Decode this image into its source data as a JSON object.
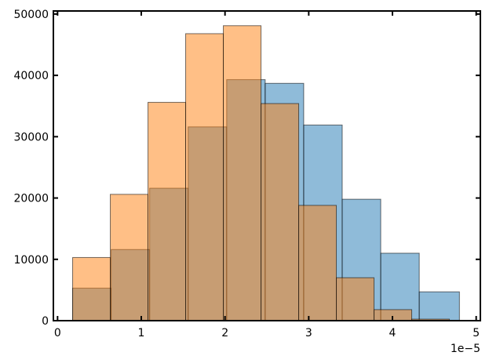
{
  "chart_data": {
    "type": "bar",
    "title": "",
    "xlabel": "",
    "ylabel": "",
    "x_offset_label": "1e−5",
    "xlim": [
      -0.05,
      5.05
    ],
    "ylim": [
      0,
      50500
    ],
    "x_ticks": [
      0,
      1,
      2,
      3,
      4,
      5
    ],
    "x_tick_labels": [
      "0",
      "1",
      "2",
      "3",
      "4",
      "5"
    ],
    "y_ticks": [
      0,
      10000,
      20000,
      30000,
      40000,
      50000
    ],
    "y_tick_labels": [
      "0",
      "10000",
      "20000",
      "30000",
      "40000",
      "50000"
    ],
    "grid": false,
    "legend": "none",
    "series": [
      {
        "color": "#1f77b4",
        "opacity": 0.5,
        "bins": [
          {
            "x0": 0.18,
            "x1": 0.64,
            "count": 5300
          },
          {
            "x0": 0.64,
            "x1": 1.1,
            "count": 11600
          },
          {
            "x0": 1.1,
            "x1": 1.56,
            "count": 21600
          },
          {
            "x0": 1.56,
            "x1": 2.02,
            "count": 31600
          },
          {
            "x0": 2.02,
            "x1": 2.48,
            "count": 39300
          },
          {
            "x0": 2.48,
            "x1": 2.94,
            "count": 38700
          },
          {
            "x0": 2.94,
            "x1": 3.4,
            "count": 31900
          },
          {
            "x0": 3.4,
            "x1": 3.86,
            "count": 19800
          },
          {
            "x0": 3.86,
            "x1": 4.32,
            "count": 11000
          },
          {
            "x0": 4.32,
            "x1": 4.8,
            "count": 4700
          }
        ]
      },
      {
        "color": "#ff7f0e",
        "opacity": 0.5,
        "bins": [
          {
            "x0": 0.18,
            "x1": 0.63,
            "count": 10300
          },
          {
            "x0": 0.63,
            "x1": 1.08,
            "count": 20600
          },
          {
            "x0": 1.08,
            "x1": 1.53,
            "count": 35600
          },
          {
            "x0": 1.53,
            "x1": 1.98,
            "count": 46800
          },
          {
            "x0": 1.98,
            "x1": 2.43,
            "count": 48100
          },
          {
            "x0": 2.43,
            "x1": 2.88,
            "count": 35400
          },
          {
            "x0": 2.88,
            "x1": 3.33,
            "count": 18800
          },
          {
            "x0": 3.33,
            "x1": 3.78,
            "count": 7000
          },
          {
            "x0": 3.78,
            "x1": 4.23,
            "count": 1800
          },
          {
            "x0": 4.23,
            "x1": 4.68,
            "count": 250
          }
        ]
      }
    ]
  }
}
